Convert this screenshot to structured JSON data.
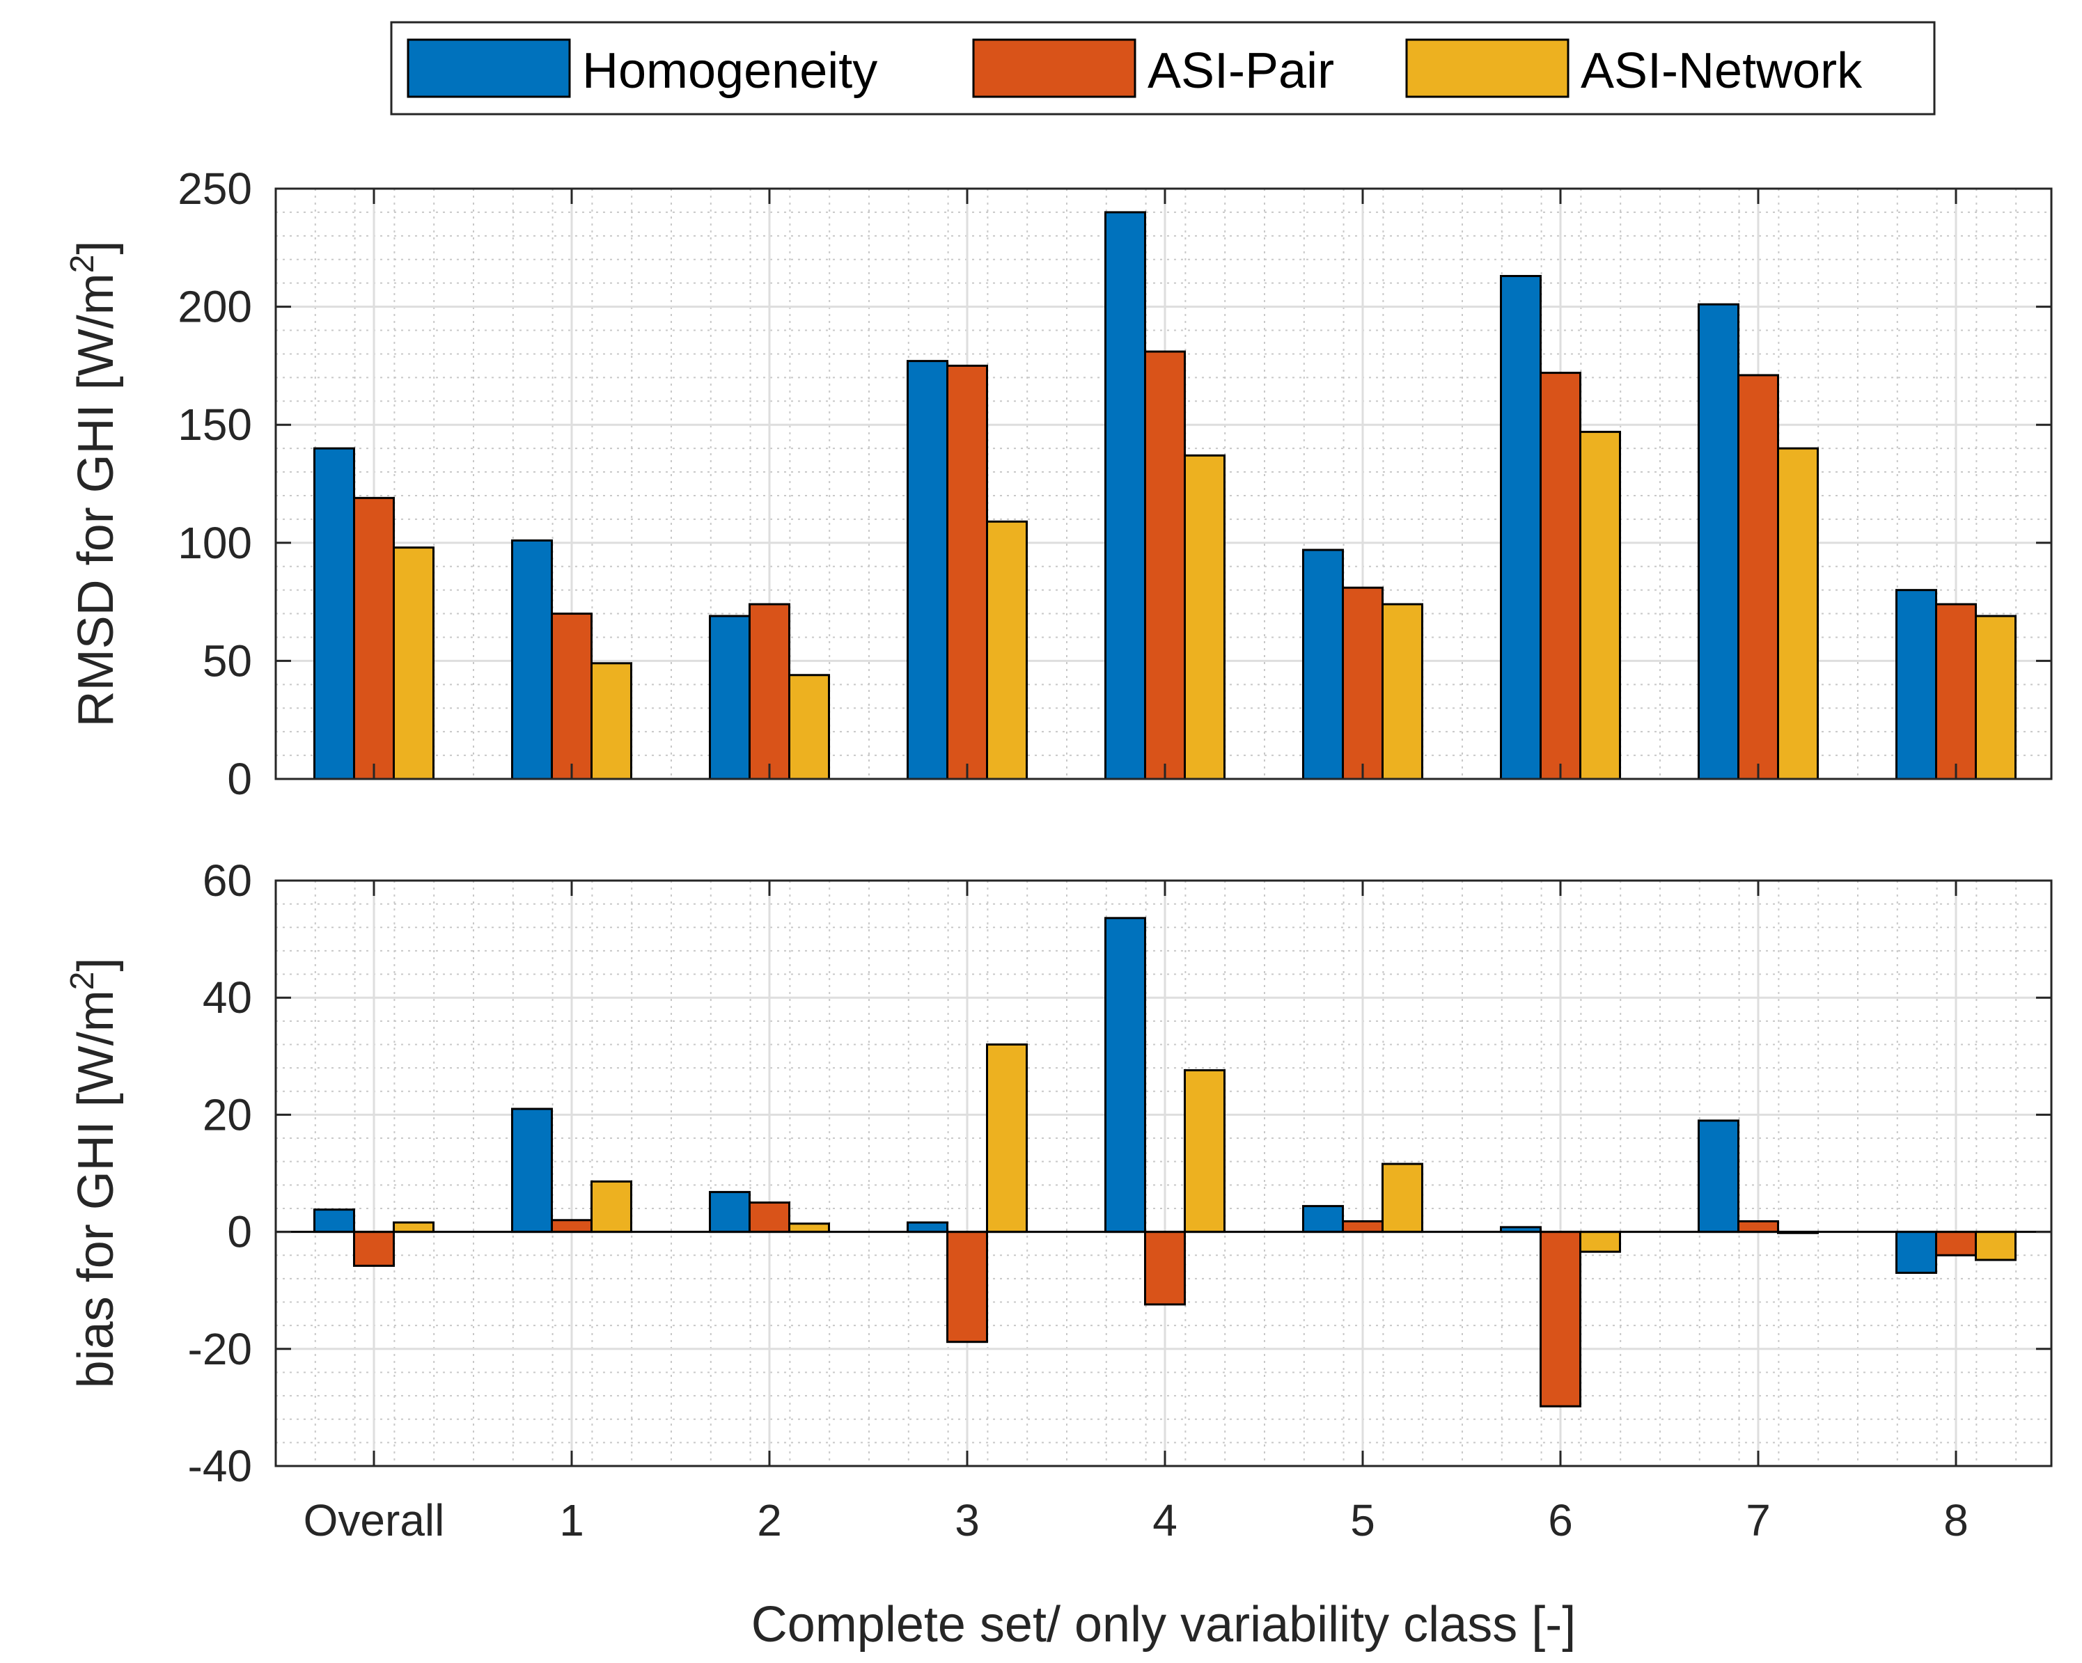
{
  "chart_data": [
    {
      "type": "bar",
      "categories": [
        "Overall",
        "1",
        "2",
        "3",
        "4",
        "5",
        "6",
        "7",
        "8"
      ],
      "series": [
        {
          "name": "Homogeneity",
          "values": [
            140,
            101,
            69,
            177,
            240,
            97,
            213,
            201,
            80
          ]
        },
        {
          "name": "ASI-Pair",
          "values": [
            119,
            70,
            74,
            175,
            181,
            81,
            172,
            171,
            74
          ]
        },
        {
          "name": "ASI-Network",
          "values": [
            98,
            49,
            44,
            109,
            137,
            74,
            147,
            140,
            69
          ]
        }
      ],
      "ylabel": "RMSD for GHI [W/m²]",
      "ylabel_main": "RMSD for GHI [W/m",
      "ylabel_sup": "2",
      "ylabel_close": "]",
      "ylim": [
        0,
        250
      ],
      "yticks": [
        0,
        50,
        100,
        150,
        200,
        250
      ],
      "grid": true,
      "minor_grid": true
    },
    {
      "type": "bar",
      "categories": [
        "Overall",
        "1",
        "2",
        "3",
        "4",
        "5",
        "6",
        "7",
        "8"
      ],
      "series": [
        {
          "name": "Homogeneity",
          "values": [
            3.8,
            21,
            6.8,
            1.6,
            53.6,
            4.4,
            0.8,
            19,
            -7
          ]
        },
        {
          "name": "ASI-Pair",
          "values": [
            -5.8,
            2,
            5,
            -18.8,
            -12.4,
            1.8,
            -29.8,
            1.8,
            -4
          ]
        },
        {
          "name": "ASI-Network",
          "values": [
            1.6,
            8.6,
            1.4,
            32,
            27.6,
            11.6,
            -3.4,
            -0.2,
            -4.8
          ]
        }
      ],
      "ylabel": "bias for GHI [W/m²]",
      "ylabel_main": "bias for GHI [W/m",
      "ylabel_sup": "2",
      "ylabel_close": "]",
      "ylim": [
        -40,
        60
      ],
      "yticks": [
        -40,
        -20,
        0,
        20,
        40,
        60
      ],
      "xlabel": "Complete set/ only variability class [-]",
      "grid": true,
      "minor_grid": true
    }
  ],
  "legend": {
    "position": "top-center",
    "entries": [
      "Homogeneity",
      "ASI-Pair",
      "ASI-Network"
    ]
  },
  "colors": {
    "Homogeneity": "#0072BD",
    "ASI-Pair": "#D95319",
    "ASI-Network": "#EDB120"
  }
}
